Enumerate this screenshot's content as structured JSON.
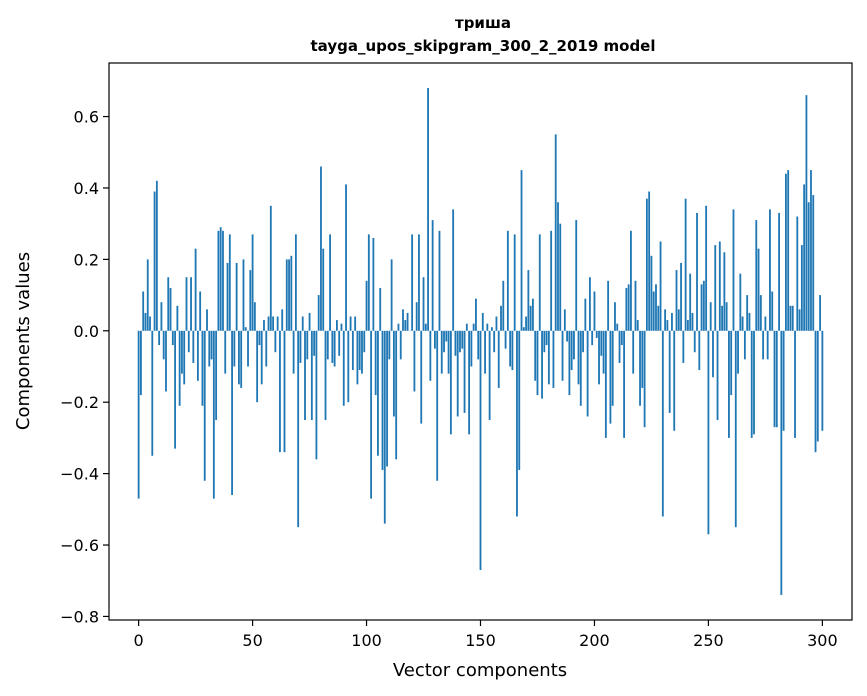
{
  "colors": {
    "bar": "#1f77b4",
    "axis": "#000000",
    "background": "#ffffff"
  },
  "chart_data": {
    "type": "bar",
    "title": "триша",
    "subtitle": "tayga_upos_skipgram_300_2_2019 model",
    "xlabel": "Vector components",
    "ylabel": "Components values",
    "xlim": [
      -13,
      313
    ],
    "ylim": [
      -0.81,
      0.75
    ],
    "xticks": [
      0,
      50,
      100,
      150,
      200,
      250,
      300
    ],
    "xtick_labels": [
      "0",
      "50",
      "100",
      "150",
      "200",
      "250",
      "300"
    ],
    "yticks": [
      -0.8,
      -0.6,
      -0.4,
      -0.2,
      0.0,
      0.2,
      0.4,
      0.6
    ],
    "ytick_labels": [
      "−0.8",
      "−0.6",
      "−0.4",
      "−0.2",
      "0.0",
      "0.2",
      "0.4",
      "0.6"
    ],
    "grid": false,
    "values": [
      -0.47,
      -0.18,
      0.11,
      0.05,
      0.2,
      0.04,
      -0.35,
      0.39,
      0.42,
      -0.04,
      0.08,
      -0.08,
      -0.17,
      0.15,
      0.12,
      -0.04,
      -0.33,
      0.07,
      -0.21,
      -0.12,
      -0.15,
      0.15,
      -0.06,
      0.15,
      -0.09,
      0.23,
      -0.14,
      0.11,
      -0.21,
      -0.42,
      0.06,
      -0.1,
      -0.08,
      -0.47,
      -0.25,
      0.28,
      0.29,
      0.28,
      -0.12,
      0.19,
      0.27,
      -0.46,
      -0.1,
      0.19,
      -0.15,
      -0.16,
      0.2,
      0.01,
      -0.1,
      0.17,
      0.27,
      0.08,
      -0.2,
      -0.04,
      -0.15,
      0.03,
      -0.1,
      0.04,
      0.35,
      0.04,
      -0.06,
      0.04,
      -0.34,
      0.06,
      -0.34,
      0.2,
      0.2,
      0.21,
      -0.12,
      0.27,
      -0.55,
      -0.09,
      0.04,
      -0.25,
      -0.08,
      0.05,
      -0.25,
      -0.07,
      -0.36,
      0.1,
      0.46,
      0.23,
      -0.25,
      -0.08,
      0.27,
      -0.09,
      -0.1,
      0.03,
      -0.07,
      0.02,
      -0.21,
      0.41,
      -0.2,
      0.04,
      -0.11,
      0.04,
      -0.15,
      -0.11,
      -0.12,
      -0.06,
      0.14,
      0.27,
      -0.47,
      0.26,
      -0.18,
      -0.35,
      0.12,
      -0.39,
      -0.54,
      -0.38,
      -0.08,
      0.2,
      -0.24,
      -0.36,
      0.02,
      -0.08,
      0.06,
      0.03,
      0.05,
      0.0,
      0.27,
      -0.17,
      0.08,
      0.27,
      -0.26,
      0.15,
      0.02,
      0.68,
      -0.14,
      0.31,
      -0.05,
      -0.42,
      0.28,
      -0.12,
      -0.06,
      -0.03,
      -0.12,
      -0.29,
      0.34,
      -0.07,
      -0.24,
      -0.06,
      -0.05,
      -0.23,
      0.02,
      -0.29,
      -0.1,
      0.02,
      0.09,
      -0.08,
      -0.67,
      0.05,
      -0.12,
      0.02,
      -0.25,
      0.01,
      -0.06,
      0.04,
      -0.16,
      0.07,
      0.14,
      -0.05,
      0.28,
      -0.1,
      -0.11,
      0.27,
      -0.52,
      -0.39,
      0.45,
      0.01,
      0.04,
      0.17,
      0.07,
      0.09,
      -0.14,
      -0.18,
      0.27,
      -0.19,
      -0.06,
      -0.04,
      -0.15,
      0.28,
      -0.16,
      0.55,
      0.36,
      0.3,
      -0.14,
      0.06,
      -0.03,
      -0.18,
      -0.11,
      -0.08,
      0.31,
      -0.15,
      -0.21,
      -0.06,
      0.09,
      -0.24,
      0.15,
      -0.04,
      0.11,
      -0.02,
      -0.15,
      -0.07,
      -0.12,
      -0.3,
      0.14,
      -0.26,
      -0.21,
      0.08,
      0.02,
      -0.09,
      -0.04,
      -0.3,
      0.12,
      0.13,
      0.28,
      -0.12,
      0.14,
      0.03,
      -0.21,
      -0.16,
      -0.27,
      0.37,
      0.39,
      0.21,
      0.11,
      0.13,
      0.07,
      0.25,
      -0.52,
      0.06,
      0.03,
      -0.23,
      0.05,
      -0.28,
      0.17,
      0.06,
      0.19,
      -0.09,
      0.37,
      0.03,
      0.16,
      0.05,
      -0.06,
      0.33,
      -0.11,
      0.13,
      0.14,
      0.35,
      -0.57,
      0.08,
      -0.13,
      0.24,
      -0.25,
      0.25,
      0.07,
      0.22,
      0.08,
      -0.3,
      -0.18,
      0.34,
      -0.55,
      -0.12,
      0.16,
      0.04,
      -0.08,
      0.1,
      0.05,
      -0.3,
      -0.29,
      0.31,
      0.23,
      0.1,
      -0.08,
      0.04,
      -0.08,
      0.34,
      0.11,
      -0.27,
      -0.27,
      0.33,
      -0.74,
      -0.28,
      0.44,
      0.45,
      0.07,
      0.07,
      -0.3,
      0.32,
      0.06,
      0.24,
      0.41,
      0.66,
      0.36,
      0.45,
      0.38,
      -0.34,
      -0.31,
      0.1,
      -0.28
    ]
  }
}
